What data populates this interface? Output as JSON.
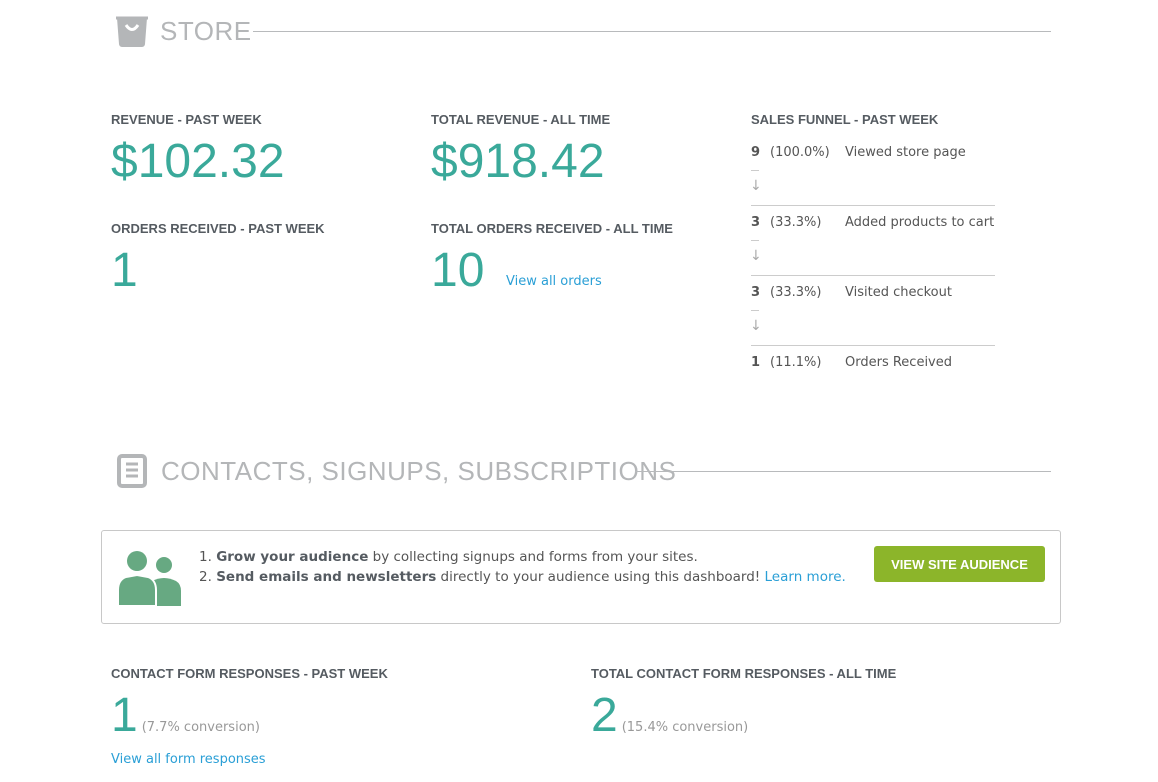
{
  "store": {
    "title": "STORE",
    "revenue_week": {
      "label": "REVENUE - PAST WEEK",
      "value": "$102.32"
    },
    "revenue_all": {
      "label": "TOTAL REVENUE - ALL TIME",
      "value": "$918.42"
    },
    "orders_week": {
      "label": "ORDERS RECEIVED - PAST WEEK",
      "value": "1"
    },
    "orders_all": {
      "label": "TOTAL ORDERS RECEIVED - ALL TIME",
      "value": "10",
      "link": "View all orders"
    },
    "funnel": {
      "label": "SALES FUNNEL - PAST WEEK",
      "arrow": "↓",
      "steps": [
        {
          "count": "9",
          "pct": "(100.0%)",
          "name": "Viewed store page"
        },
        {
          "count": "3",
          "pct": "(33.3%)",
          "name": "Added products to cart"
        },
        {
          "count": "3",
          "pct": "(33.3%)",
          "name": "Visited checkout"
        },
        {
          "count": "1",
          "pct": "(11.1%)",
          "name": "Orders Received"
        }
      ]
    }
  },
  "contacts": {
    "title": "CONTACTS, SIGNUPS, SUBSCRIPTIONS",
    "info": {
      "l1_num": "1.",
      "l1_bold": "Grow your audience",
      "l1_rest": " by collecting signups and forms from your sites.",
      "l2_num": "2.",
      "l2_bold": "Send emails and newsletters",
      "l2_rest": " directly to your audience using this dashboard! ",
      "l2_link": "Learn more."
    },
    "button": "VIEW SITE AUDIENCE",
    "week": {
      "label": "CONTACT FORM RESPONSES - PAST WEEK",
      "value": "1",
      "conv": "(7.7% conversion)",
      "link": "View all form responses"
    },
    "all": {
      "label": "TOTAL CONTACT FORM RESPONSES - ALL TIME",
      "value": "2",
      "conv": "(15.4% conversion)"
    }
  },
  "colors": {
    "accent": "#3aa99a",
    "link": "#2a9fd6",
    "button": "#8cb52a",
    "icon": "#67a982"
  }
}
